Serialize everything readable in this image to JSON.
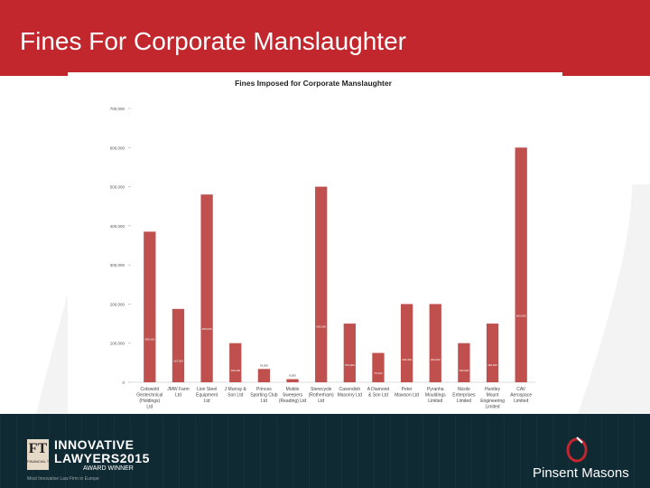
{
  "slide": {
    "title": "Fines For Corporate Manslaughter"
  },
  "footer": {
    "ft_badge": "FT",
    "ft_small": "FINANCIAL TIMES",
    "award_line1": "INNOVATIVE",
    "award_line2": "LAWYERS2015",
    "award_line3": "AWARD WINNER",
    "award_line4": "Most Innovative Law Firm in Europe",
    "brand": "Pinsent Masons"
  },
  "colors": {
    "title_bar": "#c1272d",
    "bar": "#c0504d",
    "footer": "#0f2a33"
  },
  "chart_data": {
    "type": "bar",
    "title": "Fines Imposed for Corporate Manslaughter",
    "xlabel": "",
    "ylabel": "",
    "ylim": [
      0,
      700000
    ],
    "yticks": [
      "0",
      "100,000",
      "200,000",
      "300,000",
      "400,000",
      "500,000",
      "600,000",
      "700,000"
    ],
    "legend": "none",
    "grid": false,
    "categories": [
      [
        "Cotswold",
        "Geotechnical",
        "(Holdings)",
        "Ltd"
      ],
      [
        "JMW Farm",
        "Ltd"
      ],
      [
        "Lion Steel",
        "Equipment",
        "Ltd"
      ],
      [
        "J Murray &",
        "Son Ltd"
      ],
      [
        "Princes",
        "Sporting Club",
        "Ltd"
      ],
      [
        "Mobile",
        "Sweepers",
        "(Reading) Ltd"
      ],
      [
        "Sterecycle",
        "(Rotherham)",
        "Ltd"
      ],
      [
        "Cavendish",
        "Masonry Ltd"
      ],
      [
        "A Diamond",
        "& Son Ltd"
      ],
      [
        "Peter",
        "Mawson Ltd"
      ],
      [
        "Pyranha",
        "Mouldings",
        "Limited"
      ],
      [
        "Nicole",
        "Enterprises",
        "Limited"
      ],
      [
        "Huntley",
        "Mount",
        "Engineering",
        "Limited"
      ],
      [
        "CAV",
        "Aerospace",
        "Limited"
      ]
    ],
    "values": [
      385000,
      187500,
      480000,
      100000,
      34000,
      8000,
      500000,
      150000,
      75000,
      200000,
      200000,
      100000,
      150000,
      600000
    ],
    "value_labels": [
      "385,000",
      "187,500",
      "480,000",
      "100,000",
      "34,000",
      "8,000",
      "500,000",
      "150,000",
      "75,000",
      "200,000",
      "200,000",
      "100,000",
      "150,000",
      "600,000"
    ]
  }
}
